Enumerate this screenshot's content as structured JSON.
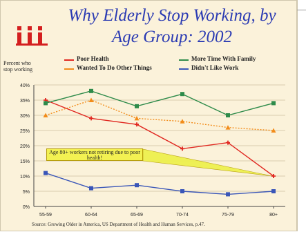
{
  "title_line1": "Why Elderly Stop Working, by",
  "title_line2": "Age Group:  2002",
  "logo_label": "iii",
  "ylabel_text": "Percent who stop working",
  "callout_text": "Age 80+ workers not retiring due to poor health!",
  "source_text": "Source: Growing Older in America, US Department of Health and Human Services, p.47.",
  "chart_data": {
    "type": "line",
    "title": "Why Elderly Stop Working, by Age Group:  2002",
    "ylabel": "Percent who stop working",
    "xlabel": "",
    "categories": [
      "55-59",
      "60-64",
      "65-69",
      "70-74",
      "75-79",
      "80+"
    ],
    "ylim": [
      0,
      40
    ],
    "yticks": [
      "0%",
      "5%",
      "10%",
      "15%",
      "20%",
      "25%",
      "30%",
      "35%",
      "40%"
    ],
    "grid": "horizontal",
    "legend": "top",
    "series": [
      {
        "name": "Poor Health",
        "color": "#e0261f",
        "marker": "cross",
        "values": [
          35,
          29,
          27,
          19,
          21,
          10
        ]
      },
      {
        "name": "More Time With Family",
        "color": "#2e8b4a",
        "marker": "square",
        "values": [
          34,
          38,
          33,
          37,
          30,
          34
        ]
      },
      {
        "name": "Wanted To Do Other Things",
        "color": "#f28c1a",
        "marker": "triangle",
        "values": [
          30,
          35,
          29,
          28,
          26,
          25
        ]
      },
      {
        "name": "Didn't Like Work",
        "color": "#3a56b8",
        "marker": "square",
        "values": [
          11,
          6,
          7,
          5,
          4,
          5
        ]
      }
    ]
  }
}
